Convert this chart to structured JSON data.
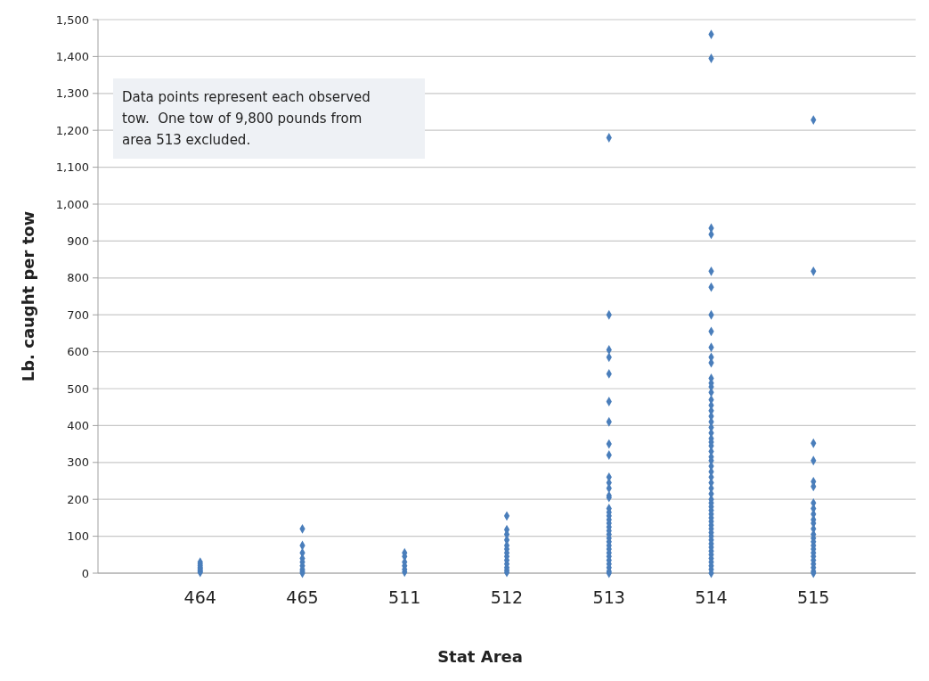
{
  "chart_data": {
    "type": "scatter",
    "xlabel": "Stat Area",
    "ylabel": "Lb. caught per tow",
    "categories": [
      "464",
      "465",
      "511",
      "512",
      "513",
      "514",
      "515"
    ],
    "ylim": [
      0,
      1500
    ],
    "yticks": [
      {
        "value": 0,
        "label": "0"
      },
      {
        "value": 100,
        "label": "100"
      },
      {
        "value": 200,
        "label": "200"
      },
      {
        "value": 300,
        "label": "300"
      },
      {
        "value": 400,
        "label": "400"
      },
      {
        "value": 500,
        "label": "500"
      },
      {
        "value": 600,
        "label": "600"
      },
      {
        "value": 700,
        "label": "700"
      },
      {
        "value": 800,
        "label": "800"
      },
      {
        "value": 900,
        "label": "900"
      },
      {
        "value": 1000,
        "label": "1,000"
      },
      {
        "value": 1100,
        "label": "1,100"
      },
      {
        "value": 1200,
        "label": "1,200"
      },
      {
        "value": 1300,
        "label": "1,300"
      },
      {
        "value": 1400,
        "label": "1,400"
      },
      {
        "value": 1500,
        "label": "1,500"
      }
    ],
    "grid": "y",
    "marker": "diamond",
    "annotations": [
      "Data points represent each observed tow.  One tow of 9,800 pounds from area 513 excluded."
    ],
    "series": [
      {
        "color": "#4a7ebb",
        "x": [
          "464",
          "464",
          "464",
          "464",
          "464",
          "464",
          "464",
          "464",
          "465",
          "465",
          "465",
          "465",
          "465",
          "465",
          "465",
          "465",
          "465",
          "511",
          "511",
          "511",
          "511",
          "511",
          "511",
          "512",
          "512",
          "512",
          "512",
          "512",
          "512",
          "512",
          "512",
          "512",
          "512",
          "512",
          "512",
          "512",
          "513",
          "513",
          "513",
          "513",
          "513",
          "513",
          "513",
          "513",
          "513",
          "513",
          "513",
          "513",
          "513",
          "513",
          "513",
          "513",
          "513",
          "513",
          "513",
          "513",
          "513",
          "513",
          "513",
          "513",
          "513",
          "513",
          "513",
          "513",
          "513",
          "513",
          "513",
          "513",
          "513",
          "514",
          "514",
          "514",
          "514",
          "514",
          "514",
          "514",
          "514",
          "514",
          "514",
          "514",
          "514",
          "514",
          "514",
          "514",
          "514",
          "514",
          "514",
          "514",
          "514",
          "514",
          "514",
          "514",
          "514",
          "514",
          "514",
          "514",
          "514",
          "514",
          "514",
          "514",
          "514",
          "514",
          "514",
          "514",
          "514",
          "514",
          "514",
          "514",
          "514",
          "514",
          "514",
          "514",
          "514",
          "514",
          "514",
          "514",
          "514",
          "514",
          "514",
          "514",
          "514",
          "514",
          "514",
          "514",
          "515",
          "515",
          "515",
          "515",
          "515",
          "515",
          "515",
          "515",
          "515",
          "515",
          "515",
          "515",
          "515",
          "515",
          "515",
          "515",
          "515",
          "515",
          "515",
          "515",
          "515",
          "515",
          "515",
          "515"
        ],
        "values": [
          2,
          5,
          8,
          12,
          15,
          20,
          25,
          30,
          120,
          75,
          55,
          40,
          30,
          20,
          10,
          5,
          0,
          55,
          45,
          30,
          20,
          10,
          3,
          155,
          118,
          105,
          90,
          75,
          65,
          55,
          45,
          35,
          25,
          15,
          8,
          2,
          1180,
          700,
          605,
          585,
          540,
          465,
          410,
          350,
          320,
          260,
          245,
          230,
          210,
          205,
          175,
          165,
          155,
          145,
          135,
          125,
          115,
          105,
          95,
          85,
          75,
          65,
          55,
          45,
          35,
          25,
          15,
          5,
          0,
          1460,
          1395,
          935,
          918,
          818,
          775,
          700,
          655,
          612,
          585,
          570,
          528,
          515,
          505,
          490,
          470,
          455,
          440,
          425,
          410,
          395,
          380,
          365,
          355,
          345,
          330,
          315,
          305,
          290,
          275,
          260,
          245,
          230,
          215,
          200,
          190,
          180,
          170,
          160,
          150,
          140,
          130,
          120,
          110,
          100,
          90,
          80,
          70,
          60,
          50,
          40,
          30,
          20,
          10,
          0,
          1228,
          818,
          352,
          305,
          248,
          235,
          190,
          175,
          160,
          145,
          135,
          120,
          105,
          95,
          85,
          75,
          65,
          55,
          45,
          35,
          25,
          15,
          5,
          0
        ]
      }
    ]
  }
}
